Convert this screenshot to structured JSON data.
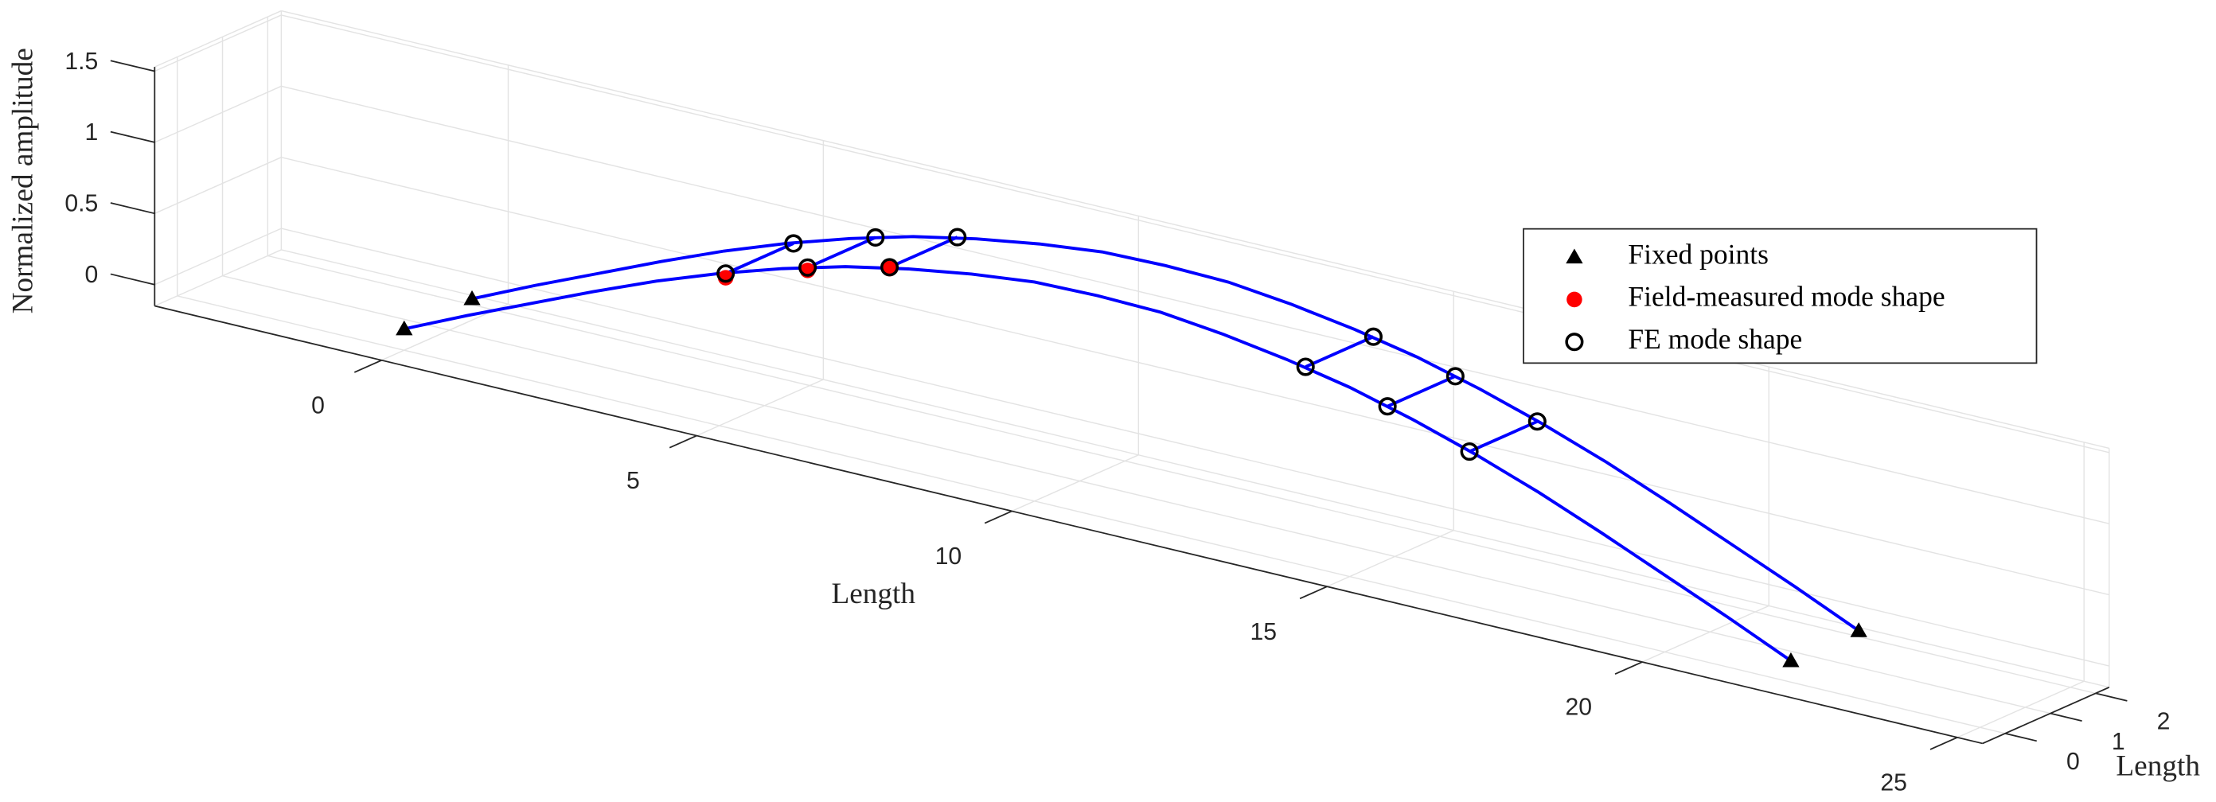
{
  "chart_data": {
    "type": "line3d",
    "xlabel": "Length",
    "ylabel": "Length",
    "zlabel": "Normalized amplitude",
    "xlim": [
      -3.6,
      25.4
    ],
    "ylim": [
      -0.5,
      2.3
    ],
    "zlim": [
      -0.15,
      1.53
    ],
    "xticks": [
      0,
      5,
      10,
      15,
      20,
      25
    ],
    "yticks": [
      0,
      1,
      2
    ],
    "zticks": [
      0,
      0.5,
      1,
      1.5
    ],
    "grid": true,
    "legend": "right",
    "lines": [
      {
        "color": "#0000ff",
        "y": 0,
        "x": [
          0,
          1,
          2,
          3,
          4,
          5,
          6,
          7,
          8,
          9,
          10,
          11,
          12,
          13,
          14,
          15,
          16,
          17,
          18,
          19,
          20,
          21,
          22
        ],
        "z": [
          0,
          0.2,
          0.39,
          0.58,
          0.76,
          0.92,
          1.06,
          1.18,
          1.27,
          1.34,
          1.39,
          1.4,
          1.39,
          1.34,
          1.27,
          1.18,
          1.06,
          0.92,
          0.76,
          0.58,
          0.39,
          0.2,
          0
        ]
      },
      {
        "color": "#0000ff",
        "y": 1.5,
        "x": [
          0,
          1,
          2,
          3,
          4,
          5,
          6,
          7,
          8,
          9,
          10,
          11,
          12,
          13,
          14,
          15,
          16,
          17,
          18,
          19,
          20,
          21,
          22
        ],
        "z": [
          0,
          0.2,
          0.39,
          0.58,
          0.76,
          0.92,
          1.06,
          1.18,
          1.27,
          1.34,
          1.39,
          1.4,
          1.39,
          1.34,
          1.27,
          1.18,
          1.06,
          0.92,
          0.76,
          0.58,
          0.39,
          0.2,
          0
        ]
      }
    ],
    "series": [
      {
        "name": "Fixed points",
        "marker": "triangle",
        "color": "#000000",
        "x": [
          0,
          22,
          0,
          22
        ],
        "y": [
          0,
          0,
          1.5,
          1.5
        ],
        "z": [
          0,
          0,
          0,
          0
        ]
      },
      {
        "name": "Field-measured mode shape",
        "marker": "dot",
        "color": "#ff0000",
        "x": [
          5.1,
          6.4,
          7.7
        ],
        "y": [
          0,
          0,
          0
        ],
        "z": [
          0.9,
          1.09,
          1.24
        ]
      },
      {
        "name": "FE mode shape",
        "marker": "circle",
        "color": "#000000",
        "link_color": "#0000ff",
        "x": [
          5.1,
          6.4,
          7.7,
          14.3,
          15.6,
          16.9,
          5.1,
          6.4,
          7.7,
          14.3,
          15.6,
          16.9
        ],
        "y": [
          0,
          0,
          0,
          0,
          0,
          0,
          1.5,
          1.5,
          1.5,
          1.5,
          1.5,
          1.5
        ],
        "z": [
          0.93,
          1.11,
          1.25,
          1.25,
          1.11,
          0.93,
          0.93,
          1.11,
          1.25,
          1.25,
          1.11,
          0.93
        ]
      }
    ]
  }
}
